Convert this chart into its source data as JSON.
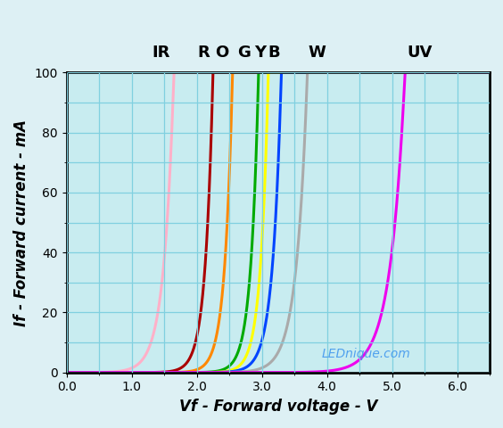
{
  "title": "",
  "xlabel": "Vf - Forward voltage - V",
  "ylabel": "If - Forward current - mA",
  "watermark": "LEDnique.com",
  "xlim": [
    0,
    6.5
  ],
  "ylim": [
    0,
    100
  ],
  "xticks": [
    0,
    1.0,
    2.0,
    3.0,
    4.0,
    5.0,
    6.0
  ],
  "yticks": [
    0,
    20,
    40,
    60,
    80,
    100
  ],
  "axes_bg": "#c8ecf0",
  "grid_color": "#80d0e0",
  "leds": [
    {
      "label": "IR",
      "color": "#ffb0c8",
      "Vt": 1.05,
      "k": 6.5
    },
    {
      "label": "R",
      "color": "#aa0000",
      "Vt": 1.65,
      "k": 8.5
    },
    {
      "label": "O",
      "color": "#ff8800",
      "Vt": 1.95,
      "k": 8.5
    },
    {
      "label": "G",
      "color": "#00aa00",
      "Vt": 2.35,
      "k": 8.5
    },
    {
      "label": "Y",
      "color": "#ffff00",
      "Vt": 2.5,
      "k": 8.5
    },
    {
      "label": "B",
      "color": "#0044ff",
      "Vt": 2.7,
      "k": 7.5
    },
    {
      "label": "W",
      "color": "#aaaaaa",
      "Vt": 3.1,
      "k": 6.0
    },
    {
      "label": "UV",
      "color": "#ee00ee",
      "Vt": 4.6,
      "k": 4.5
    }
  ],
  "label_positions_x": [
    1.45,
    2.1,
    2.38,
    2.73,
    2.98,
    3.18,
    3.85,
    5.42
  ],
  "linewidth": 2.2
}
